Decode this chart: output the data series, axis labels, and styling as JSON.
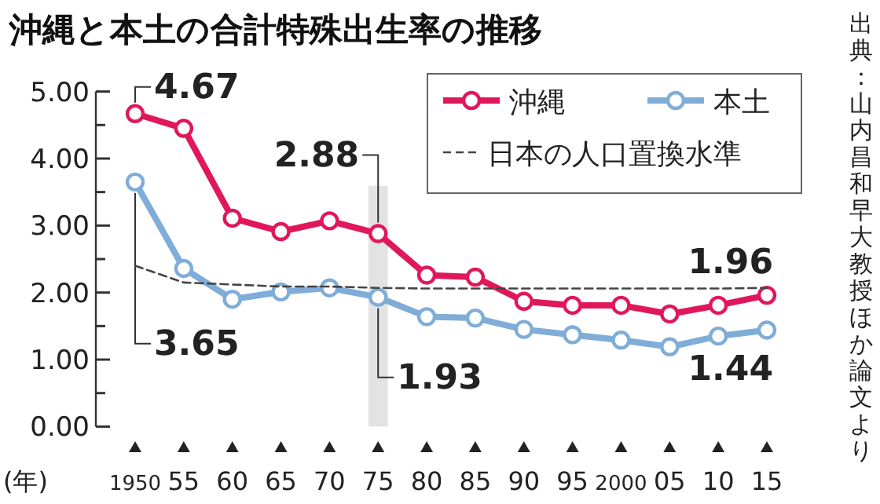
{
  "chart_data": {
    "type": "line",
    "title": "沖縄と本土の合計特殊出生率の推移",
    "xlabel": "(年)",
    "x": [
      1950,
      1955,
      1960,
      1965,
      1970,
      1975,
      1980,
      1985,
      1990,
      1995,
      2000,
      2005,
      2010,
      2015
    ],
    "series": [
      {
        "name": "沖縄",
        "color": "#e0185a",
        "marker": "circle",
        "values": [
          4.67,
          4.45,
          3.11,
          2.91,
          3.07,
          2.88,
          2.26,
          2.23,
          1.87,
          1.81,
          1.81,
          1.68,
          1.81,
          1.96
        ],
        "value_labels": [
          "4.67",
          null,
          null,
          null,
          null,
          "2.88",
          null,
          null,
          null,
          null,
          null,
          null,
          null,
          "1.96"
        ]
      },
      {
        "name": "本土",
        "color": "#7fadd8",
        "marker": "circle",
        "values": [
          3.65,
          2.36,
          1.9,
          2.01,
          2.07,
          1.93,
          1.64,
          1.62,
          1.45,
          1.37,
          1.29,
          1.19,
          1.35,
          1.44
        ],
        "value_labels": [
          "3.65",
          null,
          null,
          null,
          null,
          "1.93",
          null,
          null,
          null,
          null,
          null,
          null,
          null,
          "1.44"
        ]
      },
      {
        "name": "日本の人口置換水準",
        "color": "#444444",
        "marker": "none",
        "line_style": "dashed",
        "values": [
          2.4,
          2.15,
          2.12,
          2.09,
          2.09,
          2.07,
          2.06,
          2.06,
          2.06,
          2.06,
          2.06,
          2.06,
          2.06,
          2.07
        ]
      }
    ],
    "xlim": [
      1950,
      2015
    ],
    "xticks": [
      {
        "value": 1950,
        "label": "1950"
      },
      {
        "value": 1955,
        "label": "55"
      },
      {
        "value": 1960,
        "label": "60"
      },
      {
        "value": 1965,
        "label": "65"
      },
      {
        "value": 1970,
        "label": "70"
      },
      {
        "value": 1975,
        "label": "75"
      },
      {
        "value": 1980,
        "label": "80"
      },
      {
        "value": 1985,
        "label": "85"
      },
      {
        "value": 1990,
        "label": "90"
      },
      {
        "value": 1995,
        "label": "95"
      },
      {
        "value": 2000,
        "label": "2000"
      },
      {
        "value": 2005,
        "label": "05"
      },
      {
        "value": 2010,
        "label": "10"
      },
      {
        "value": 2015,
        "label": "15"
      }
    ],
    "ylim": [
      0,
      5
    ],
    "yticks": [
      {
        "value": 0,
        "label": "0.00"
      },
      {
        "value": 1,
        "label": "1.00"
      },
      {
        "value": 2,
        "label": "2.00"
      },
      {
        "value": 3,
        "label": "3.00"
      },
      {
        "value": 4,
        "label": "4.00"
      },
      {
        "value": 5,
        "label": "5.00"
      }
    ],
    "bands": [
      {
        "axis": "x",
        "from": 1974,
        "to": 1976,
        "color": "#e3e3e3"
      }
    ],
    "grid": false,
    "legend": "top right",
    "annotations": [
      "出典：山内昌和早大教授ほか論文より"
    ]
  }
}
